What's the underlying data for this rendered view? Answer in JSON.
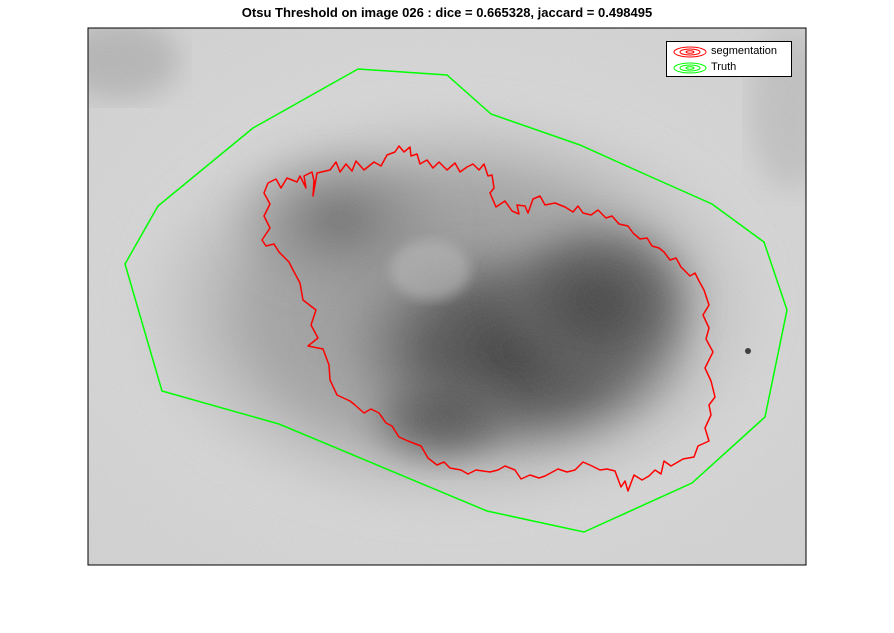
{
  "figure": {
    "title": "Otsu Threshold on image 026 : dice = 0.665328, jaccard = 0.498495"
  },
  "legend": {
    "items": [
      {
        "label": "segmentation",
        "color": "#ff0000"
      },
      {
        "label": "Truth",
        "color": "#00ff00"
      }
    ]
  },
  "colors": {
    "segmentation": "#ff0000",
    "truth": "#00ff00",
    "axes_frame": "#000000",
    "background": "#ffffff"
  }
}
